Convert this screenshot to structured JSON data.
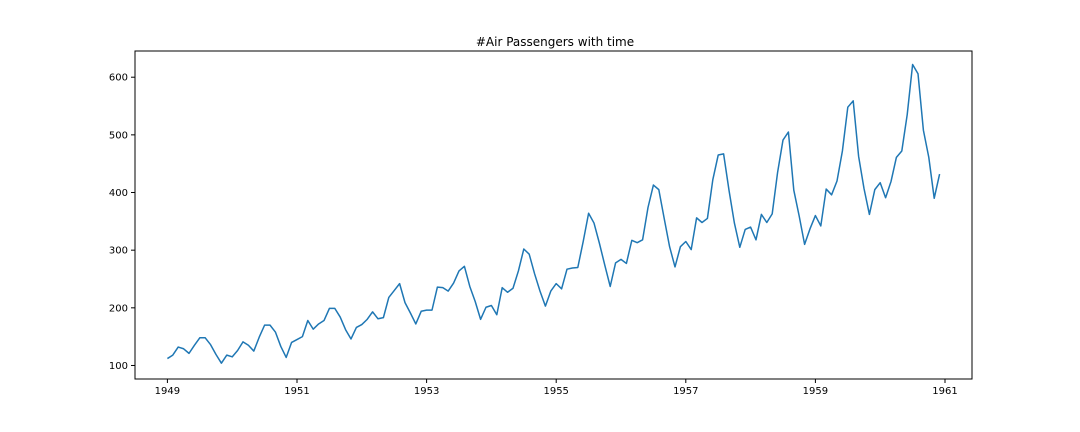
{
  "chart_data": {
    "type": "line",
    "title": "#Air Passengers with time",
    "xlabel": "",
    "ylabel": "",
    "x_start": "1949-01",
    "x_step": "month",
    "xlim": [
      "1948-07",
      "1961-06"
    ],
    "ylim": [
      76.55,
      645.45
    ],
    "x_ticks": [
      "1949",
      "1951",
      "1953",
      "1955",
      "1957",
      "1959",
      "1961"
    ],
    "y_ticks": [
      100,
      200,
      300,
      400,
      500,
      600
    ],
    "grid": false,
    "line_color": "#1f77b4",
    "series": [
      {
        "values": [
          112,
          118,
          132,
          129,
          121,
          135,
          148,
          148,
          136,
          119,
          104,
          118,
          115,
          126,
          141,
          135,
          125,
          149,
          170,
          170,
          158,
          133,
          114,
          140,
          145,
          150,
          178,
          163,
          172,
          178,
          199,
          199,
          184,
          162,
          146,
          166,
          171,
          180,
          193,
          181,
          183,
          218,
          230,
          242,
          209,
          191,
          172,
          194,
          196,
          196,
          236,
          235,
          229,
          243,
          264,
          272,
          237,
          211,
          180,
          201,
          204,
          188,
          235,
          227,
          234,
          264,
          302,
          293,
          259,
          229,
          203,
          229,
          242,
          233,
          267,
          269,
          270,
          315,
          364,
          347,
          312,
          274,
          237,
          278,
          284,
          277,
          317,
          313,
          318,
          374,
          413,
          405,
          355,
          306,
          271,
          306,
          315,
          301,
          356,
          348,
          355,
          422,
          465,
          467,
          404,
          347,
          305,
          336,
          340,
          318,
          362,
          348,
          363,
          435,
          491,
          505,
          404,
          359,
          310,
          337,
          360,
          342,
          406,
          396,
          420,
          472,
          548,
          559,
          463,
          407,
          362,
          405,
          417,
          391,
          419,
          461,
          472,
          535,
          622,
          606,
          508,
          461,
          390,
          432
        ]
      }
    ]
  }
}
